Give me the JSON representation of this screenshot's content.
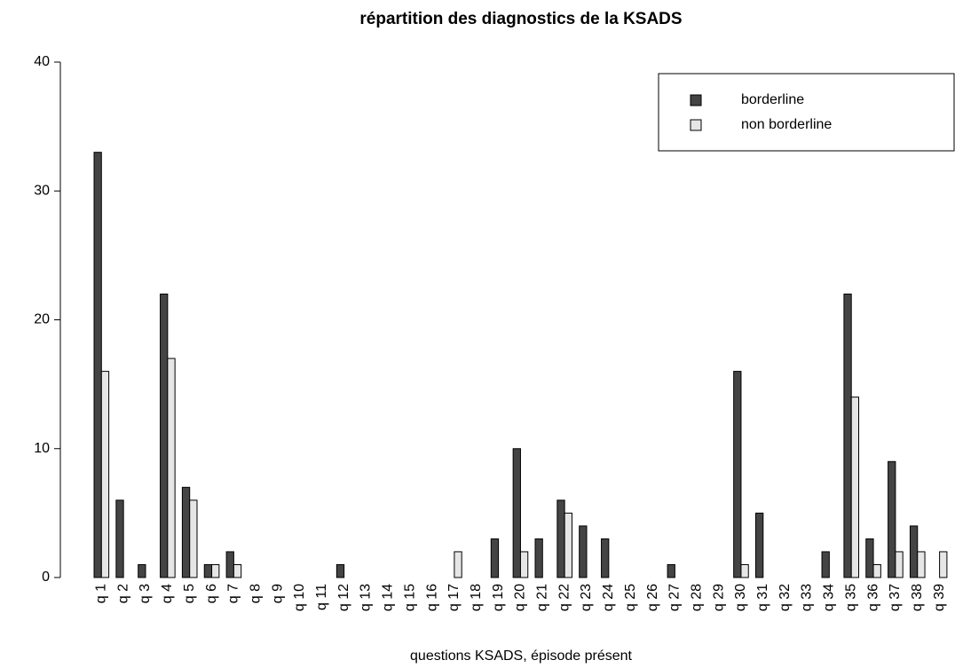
{
  "chart_data": {
    "type": "bar",
    "title": "répartition des diagnostics de la KSADS",
    "x_label": "questions KSADS, épisode présent",
    "categories": [
      "q 1",
      "q 2",
      "q 3",
      "q 4",
      "q 5",
      "q 6",
      "q 7",
      "q 8",
      "q 9",
      "q 10",
      "q 11",
      "q 12",
      "q 13",
      "q 14",
      "q 15",
      "q 16",
      "q 17",
      "q 18",
      "q 19",
      "q 20",
      "q 21",
      "q 22",
      "q 23",
      "q 24",
      "q 25",
      "q 26",
      "q 27",
      "q 28",
      "q 29",
      "q 30",
      "q 31",
      "q 32",
      "q 33",
      "q 34",
      "q 35",
      "q 36",
      "q 37",
      "q 38",
      "q 39"
    ],
    "series": [
      {
        "name": "borderline",
        "color": "#444444",
        "values": [
          33,
          6,
          1,
          22,
          7,
          1,
          2,
          0,
          0,
          0,
          0,
          1,
          0,
          0,
          0,
          0,
          0,
          0,
          3,
          10,
          3,
          6,
          4,
          3,
          0,
          0,
          1,
          0,
          0,
          16,
          5,
          0,
          0,
          2,
          22,
          3,
          9,
          4,
          0
        ]
      },
      {
        "name": "non borderline",
        "color": "#e6e6e6",
        "values": [
          16,
          0,
          0,
          17,
          6,
          1,
          1,
          0,
          0,
          0,
          0,
          0,
          0,
          0,
          0,
          0,
          2,
          0,
          0,
          2,
          0,
          5,
          0,
          0,
          0,
          0,
          0,
          0,
          0,
          1,
          0,
          0,
          0,
          0,
          14,
          1,
          2,
          2,
          2
        ]
      }
    ],
    "ylim": [
      0,
      40
    ],
    "yticks": [
      0,
      10,
      20,
      30,
      40
    ],
    "legend": "top-right"
  }
}
